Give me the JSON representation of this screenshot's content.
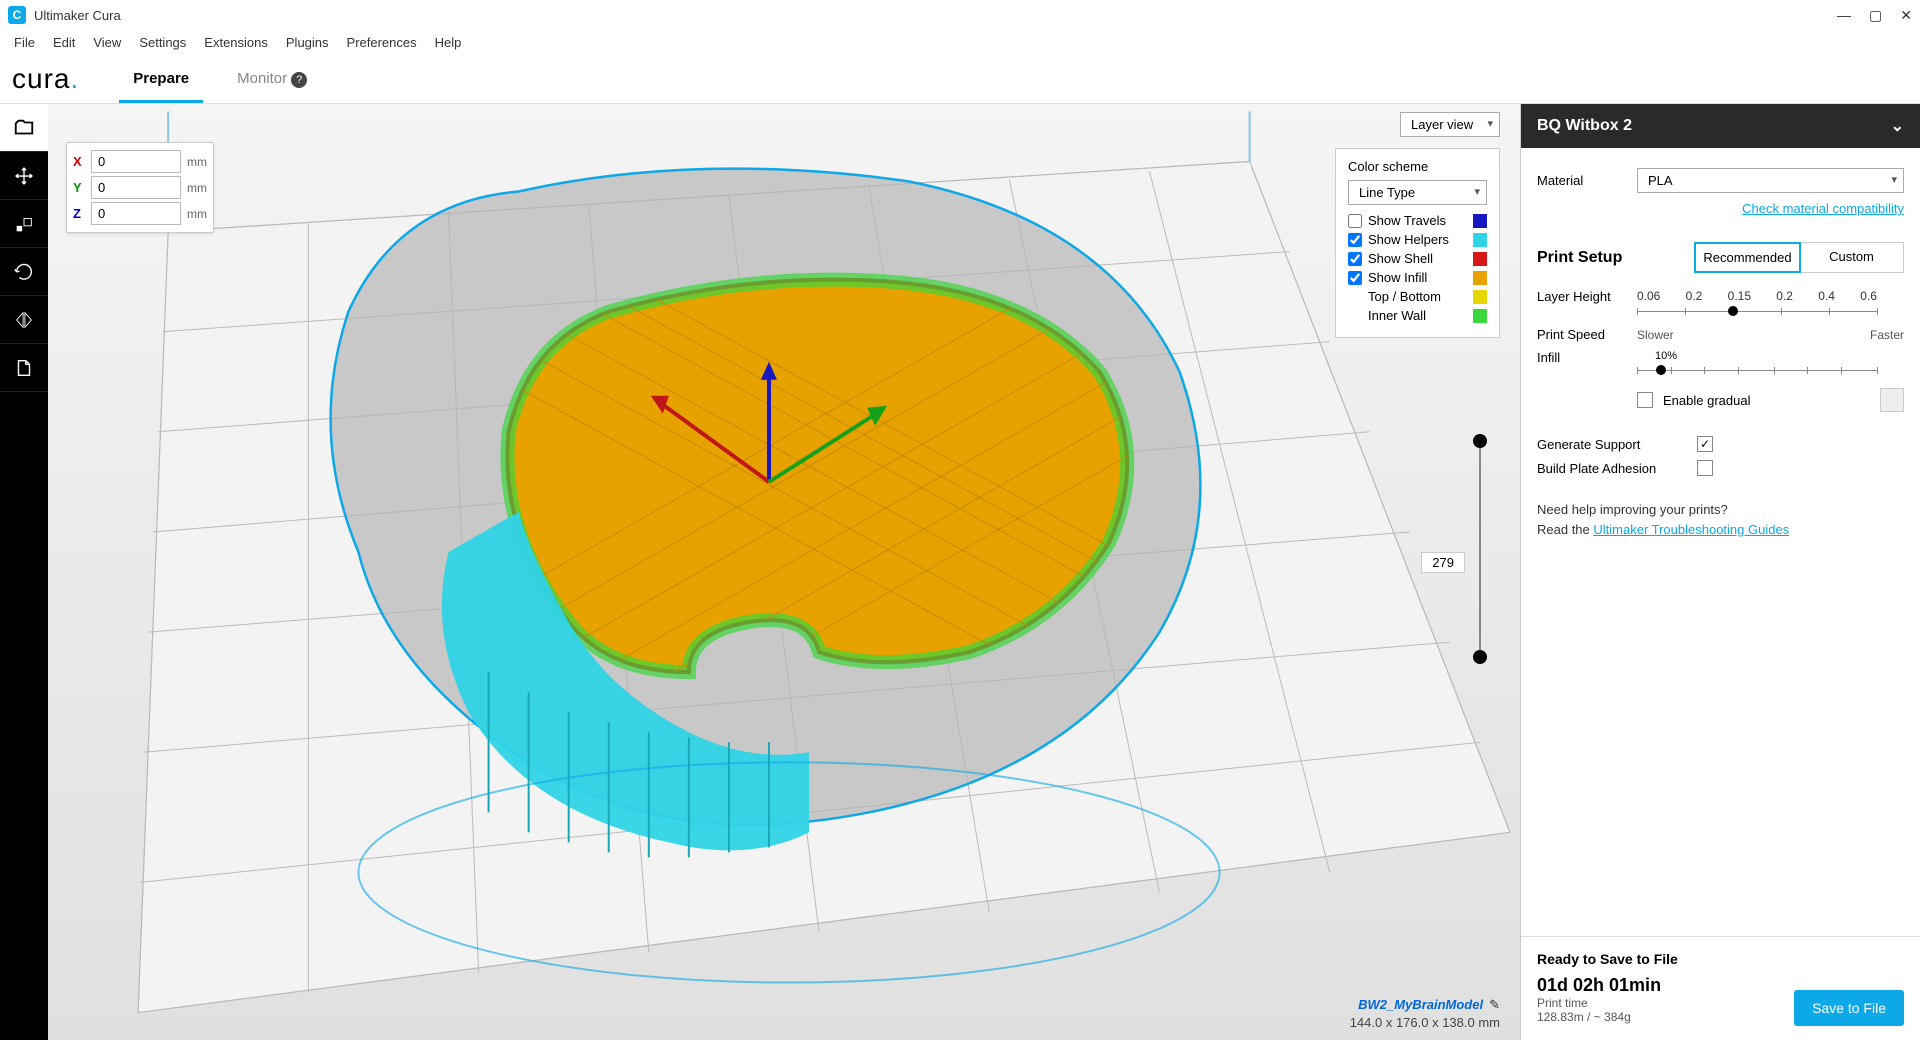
{
  "app": {
    "title": "Ultimaker Cura"
  },
  "menu": [
    "File",
    "Edit",
    "View",
    "Settings",
    "Extensions",
    "Plugins",
    "Preferences",
    "Help"
  ],
  "tabs": {
    "prepare": "Prepare",
    "monitor": "Monitor"
  },
  "xyz": {
    "x": "0",
    "y": "0",
    "z": "0",
    "unit": "mm"
  },
  "viewMode": "Layer view",
  "colorScheme": {
    "title": "Color scheme",
    "mode": "Line Type",
    "items": [
      {
        "label": "Show Travels",
        "checked": false,
        "color": "#1818c0"
      },
      {
        "label": "Show Helpers",
        "checked": true,
        "color": "#2fd3e6"
      },
      {
        "label": "Show Shell",
        "checked": true,
        "color": "#d81818"
      },
      {
        "label": "Show Infill",
        "checked": true,
        "color": "#e8a200"
      },
      {
        "label": "Top / Bottom",
        "checked": null,
        "color": "#e8d600"
      },
      {
        "label": "Inner Wall",
        "checked": null,
        "color": "#3bd63b"
      }
    ]
  },
  "layerSlider": {
    "value": "279"
  },
  "model": {
    "name": "BW2_MyBrainModel",
    "dims": "144.0 x 176.0 x 138.0 mm"
  },
  "printer": {
    "name": "BQ Witbox 2"
  },
  "material": {
    "label": "Material",
    "value": "PLA",
    "compatLink": "Check material compatibility"
  },
  "printSetup": {
    "title": "Print Setup",
    "recommended": "Recommended",
    "custom": "Custom",
    "layerHeight": {
      "label": "Layer Height",
      "ticks": [
        "0.06",
        "0.2",
        "0.15",
        "0.2",
        "0.4",
        "0.6"
      ],
      "selected": 2
    },
    "printSpeed": {
      "label": "Print Speed",
      "left": "Slower",
      "right": "Faster"
    },
    "infill": {
      "label": "Infill",
      "percent": "10%",
      "gradual": "Enable gradual"
    },
    "support": {
      "label": "Generate Support",
      "checked": true
    },
    "adhesion": {
      "label": "Build Plate Adhesion",
      "checked": false
    },
    "help": "Need help improving your prints?",
    "helpLink": "Ultimaker Troubleshooting Guides",
    "helpPrefix": "Read the "
  },
  "footer": {
    "ready": "Ready to Save to File",
    "time": "01d 02h 01min",
    "timeLabel": "Print time",
    "usage": "128.83m / ~ 384g",
    "saveBtn": "Save to File"
  },
  "scene": {
    "shell_color": "#a8a8a8",
    "outline_color": "#0ca8e8",
    "infill_color": "#e8a200",
    "inner_wall_color": "#3bd63b",
    "helpers_color": "#2fd3e6",
    "shell_red": "#d81818"
  }
}
